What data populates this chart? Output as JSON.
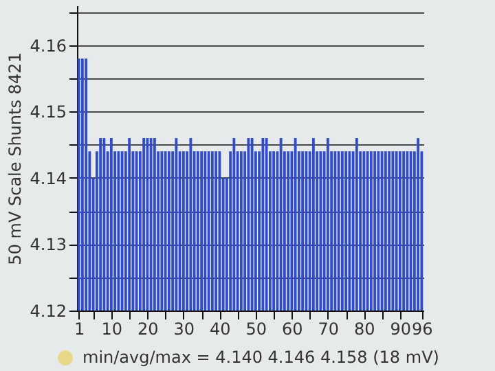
{
  "chart_data": {
    "type": "bar",
    "ylabel": "50 mV Scale  Shunts 8421",
    "x": [
      1,
      2,
      3,
      4,
      5,
      6,
      7,
      8,
      9,
      10,
      11,
      12,
      13,
      14,
      15,
      16,
      17,
      18,
      19,
      20,
      21,
      22,
      23,
      24,
      25,
      26,
      27,
      28,
      29,
      30,
      31,
      32,
      33,
      34,
      35,
      36,
      37,
      38,
      39,
      40,
      41,
      42,
      43,
      44,
      45,
      46,
      47,
      48,
      49,
      50,
      51,
      52,
      53,
      54,
      55,
      56,
      57,
      58,
      59,
      60,
      61,
      62,
      63,
      64,
      65,
      66,
      67,
      68,
      69,
      70,
      71,
      72,
      73,
      74,
      75,
      76,
      77,
      78,
      79,
      80,
      81,
      82,
      83,
      84,
      85,
      86,
      87,
      88,
      89,
      90,
      91,
      92,
      93,
      94,
      95,
      96
    ],
    "series": [
      {
        "color": "#2f4bd6",
        "values": [
          4.158,
          4.158,
          4.158,
          4.144,
          4.14,
          4.144,
          4.146,
          4.146,
          4.144,
          4.146,
          4.144,
          4.144,
          4.144,
          4.144,
          4.146,
          4.144,
          4.144,
          4.144,
          4.146,
          4.146,
          4.146,
          4.146,
          4.144,
          4.144,
          4.144,
          4.144,
          4.144,
          4.146,
          4.144,
          4.144,
          4.144,
          4.146,
          4.144,
          4.144,
          4.144,
          4.144,
          4.144,
          4.144,
          4.144,
          4.144,
          4.14,
          4.14,
          4.144,
          4.146,
          4.144,
          4.144,
          4.144,
          4.146,
          4.146,
          4.144,
          4.144,
          4.146,
          4.146,
          4.144,
          4.144,
          4.144,
          4.146,
          4.144,
          4.144,
          4.144,
          4.146,
          4.144,
          4.144,
          4.144,
          4.144,
          4.146,
          4.144,
          4.144,
          4.144,
          4.146,
          4.144,
          4.144,
          4.144,
          4.144,
          4.144,
          4.144,
          4.144,
          4.146,
          4.144,
          4.144,
          4.144,
          4.144,
          4.144,
          4.144,
          4.144,
          4.144,
          4.144,
          4.144,
          4.144,
          4.144,
          4.144,
          4.144,
          4.144,
          4.144,
          4.146,
          4.144
        ]
      }
    ],
    "xlim": [
      0.5,
      96.5
    ],
    "xticks": [
      1,
      {
        "value": 5,
        "label": null
      },
      10,
      {
        "value": 15,
        "label": null
      },
      20,
      {
        "value": 25,
        "label": null
      },
      30,
      {
        "value": 35,
        "label": null
      },
      40,
      {
        "value": 45,
        "label": null
      },
      50,
      {
        "value": 55,
        "label": null
      },
      60,
      {
        "value": 65,
        "label": null
      },
      70,
      {
        "value": 75,
        "label": null
      },
      80,
      {
        "value": 85,
        "label": null
      },
      90,
      96
    ],
    "ylim": [
      4.12,
      4.166
    ],
    "yticks": [
      {
        "value": 4.12,
        "label": "4.12"
      },
      {
        "value": 4.125,
        "label": null
      },
      {
        "value": 4.13,
        "label": "4.13"
      },
      {
        "value": 4.135,
        "label": null
      },
      {
        "value": 4.14,
        "label": "4.14"
      },
      {
        "value": 4.145,
        "label": null
      },
      {
        "value": 4.15,
        "label": "4.15"
      },
      {
        "value": 4.155,
        "label": null
      },
      {
        "value": 4.16,
        "label": "4.16"
      },
      {
        "value": 4.165,
        "label": null
      }
    ],
    "grid": "y",
    "annotations": [
      "min/avg/max = 4.140 4.146 4.158 (18 mV)"
    ]
  }
}
